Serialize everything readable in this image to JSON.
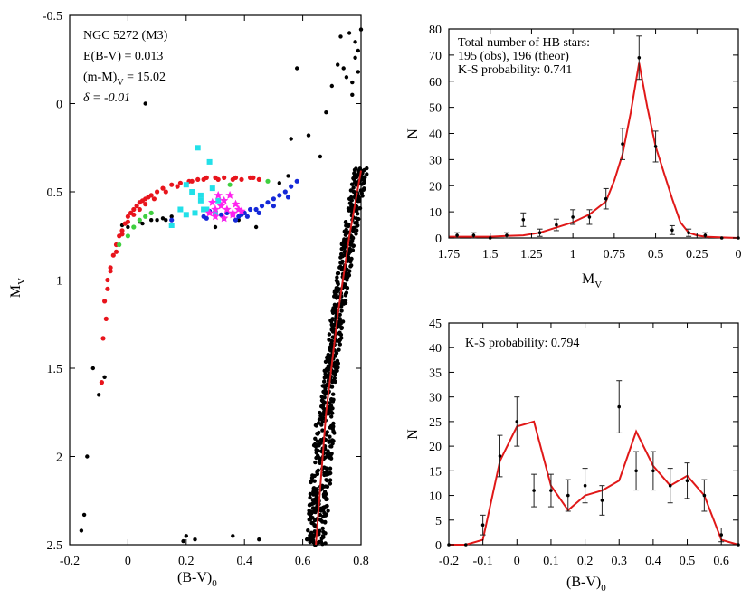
{
  "chart_data": [
    {
      "id": "cmd",
      "type": "scatter",
      "title": "",
      "xlabel_main": "(B-V)",
      "xlabel_sub": "0",
      "ylabel_main": "M",
      "ylabel_sub": "V",
      "xlim": [
        -0.2,
        0.8
      ],
      "ylim": [
        2.5,
        -0.5
      ],
      "xticks": [
        -0.2,
        0,
        0.2,
        0.4,
        0.6,
        0.8
      ],
      "xtick_labels": [
        "-0.2",
        "0",
        "0.2",
        "0.4",
        "0.6",
        "0.8"
      ],
      "yticks": [
        -0.5,
        0,
        0.5,
        1,
        1.5,
        2,
        2.5
      ],
      "ytick_labels": [
        "-0.5",
        "0",
        "0.5",
        "1",
        "1.5",
        "2",
        "2.5"
      ],
      "annotations": {
        "cluster": "NGC 5272 (M3)",
        "ebv": "E(B-V)  = 0.013",
        "dm_main": "(m-M)",
        "dm_sub": "V",
        "dm_value": " = 15.02",
        "delta": "δ = -0.01"
      },
      "colors": {
        "red": "#e8141c",
        "green": "#3fcf3f",
        "blue": "#1428d8",
        "magenta": "#ff22ee",
        "cyan": "#22e0e8",
        "black": "#000000",
        "line": "#d81a1a"
      },
      "rgb_ridge": {
        "x": [
          0.645,
          0.68,
          0.72,
          0.76,
          0.8
        ],
        "y": [
          2.5,
          1.75,
          1.2,
          0.75,
          0.38
        ]
      },
      "hb_red": {
        "x": [
          -0.08,
          -0.07,
          -0.06,
          -0.05,
          -0.04,
          -0.03,
          -0.02,
          -0.01,
          0.0,
          0.01,
          0.02,
          0.03,
          0.04,
          0.05,
          0.06,
          0.07,
          0.08,
          0.1,
          0.12,
          0.15,
          0.18,
          0.21,
          0.24,
          0.27,
          0.3,
          0.33,
          0.36,
          0.39,
          0.42,
          0.45,
          -0.07,
          -0.06,
          -0.04,
          -0.02,
          0.0,
          0.02,
          0.04,
          0.06,
          0.09,
          0.13,
          0.17,
          0.22,
          0.26,
          0.31,
          0.37,
          0.43,
          -0.09,
          -0.085,
          -0.075
        ],
        "y": [
          1.12,
          1.0,
          0.93,
          0.86,
          0.8,
          0.75,
          0.72,
          0.68,
          0.64,
          0.62,
          0.6,
          0.58,
          0.56,
          0.55,
          0.54,
          0.53,
          0.52,
          0.5,
          0.48,
          0.46,
          0.45,
          0.44,
          0.43,
          0.42,
          0.42,
          0.42,
          0.43,
          0.43,
          0.42,
          0.43,
          1.05,
          0.95,
          0.84,
          0.74,
          0.67,
          0.63,
          0.6,
          0.57,
          0.54,
          0.5,
          0.47,
          0.44,
          0.43,
          0.43,
          0.42,
          0.42,
          1.58,
          1.33,
          1.22
        ]
      },
      "hb_green": {
        "x": [
          -0.03,
          0.0,
          0.02,
          0.04,
          0.06,
          0.08,
          0.22,
          0.35,
          0.48
        ],
        "y": [
          0.8,
          0.75,
          0.7,
          0.66,
          0.64,
          0.62,
          0.5,
          0.46,
          0.44
        ]
      },
      "hb_blue": {
        "x": [
          0.2,
          0.23,
          0.26,
          0.28,
          0.3,
          0.32,
          0.34,
          0.36,
          0.38,
          0.4,
          0.42,
          0.44,
          0.46,
          0.48,
          0.5,
          0.52,
          0.54,
          0.56,
          0.58,
          0.33,
          0.37,
          0.41,
          0.45,
          0.5,
          0.55,
          0.15,
          0.27,
          0.39
        ],
        "y": [
          0.63,
          0.62,
          0.64,
          0.61,
          0.62,
          0.63,
          0.62,
          0.63,
          0.64,
          0.62,
          0.6,
          0.6,
          0.58,
          0.56,
          0.54,
          0.52,
          0.5,
          0.47,
          0.44,
          0.65,
          0.66,
          0.64,
          0.62,
          0.58,
          0.53,
          0.66,
          0.65,
          0.63
        ]
      },
      "hb_magenta": {
        "x": [
          0.28,
          0.3,
          0.32,
          0.34,
          0.36,
          0.38,
          0.3,
          0.33,
          0.36,
          0.31,
          0.35,
          0.29,
          0.33,
          0.37,
          0.39
        ],
        "y": [
          0.62,
          0.6,
          0.58,
          0.6,
          0.62,
          0.6,
          0.64,
          0.65,
          0.63,
          0.52,
          0.52,
          0.56,
          0.55,
          0.57,
          0.61
        ]
      },
      "hb_cyan": {
        "x": [
          0.24,
          0.28,
          0.2,
          0.22,
          0.25,
          0.29,
          0.31,
          0.27,
          0.23,
          0.18,
          0.2,
          0.26,
          0.15,
          0.3,
          0.25
        ],
        "y": [
          0.25,
          0.33,
          0.46,
          0.5,
          0.55,
          0.48,
          0.55,
          0.6,
          0.62,
          0.6,
          0.63,
          0.6,
          0.69,
          0.62,
          0.52
        ]
      },
      "misc_black": {
        "x": [
          -0.14,
          -0.15,
          -0.16,
          -0.12,
          -0.1,
          -0.08,
          0.06,
          0.13,
          0.19,
          0.2,
          0.23,
          0.36,
          0.45,
          0.3,
          0.44,
          0.38,
          0.52,
          0.55,
          0.15,
          0.1,
          0.05,
          0.0,
          -0.02,
          0.04,
          0.08,
          0.12
        ],
        "y": [
          2.0,
          2.33,
          2.42,
          1.5,
          1.65,
          1.55,
          0.0,
          0.66,
          2.48,
          2.45,
          2.47,
          2.45,
          2.47,
          0.7,
          0.7,
          0.66,
          0.45,
          0.41,
          0.64,
          0.66,
          0.68,
          0.7,
          0.69,
          0.67,
          0.66,
          0.65
        ]
      },
      "agb_black": {
        "x": [
          0.56,
          0.62,
          0.58,
          0.66,
          0.74,
          0.78,
          0.76,
          0.73,
          0.7,
          0.77,
          0.79,
          0.75,
          0.72,
          0.78,
          0.8,
          0.79,
          0.77,
          0.68
        ],
        "y": [
          0.2,
          0.18,
          -0.2,
          0.3,
          -0.2,
          -0.26,
          -0.4,
          -0.38,
          -0.1,
          -0.12,
          -0.3,
          -0.15,
          -0.22,
          -0.35,
          -0.42,
          -0.18,
          -0.05,
          0.05
        ]
      }
    },
    {
      "id": "mv_hist",
      "type": "line",
      "title": "",
      "xlabel_main": "M",
      "xlabel_sub": "V",
      "ylabel": "N",
      "xlim": [
        1.75,
        0
      ],
      "ylim": [
        0,
        80
      ],
      "xticks": [
        1.75,
        1.5,
        1.25,
        1,
        0.75,
        0.5,
        0.25,
        0
      ],
      "xtick_labels": [
        "1.75",
        "1.5",
        "1.25",
        "1",
        "0.75",
        "0.5",
        "0.25",
        "0"
      ],
      "yticks": [
        0,
        10,
        20,
        30,
        40,
        50,
        60,
        70,
        80
      ],
      "ytick_labels": [
        "0",
        "10",
        "20",
        "30",
        "40",
        "50",
        "60",
        "70",
        "80"
      ],
      "annotation_lines": [
        "Total number of HB stars:",
        "195 (obs), 196 (theor)",
        "K-S probability: 0.741"
      ],
      "observed": {
        "x": [
          1.7,
          1.6,
          1.5,
          1.4,
          1.3,
          1.2,
          1.1,
          1.0,
          0.9,
          0.8,
          0.7,
          0.6,
          0.5,
          0.4,
          0.3,
          0.2,
          0.1,
          0.0
        ],
        "y": [
          1,
          1,
          0,
          1,
          7,
          2,
          5,
          8,
          8,
          15,
          36,
          69,
          35,
          3,
          2,
          1,
          0,
          0
        ],
        "err": [
          1,
          1,
          0,
          1,
          2.6,
          1.4,
          2.2,
          2.8,
          2.8,
          3.9,
          6,
          8.3,
          5.9,
          1.7,
          1.4,
          1,
          0,
          0
        ]
      },
      "theory": {
        "x": [
          1.75,
          1.6,
          1.5,
          1.4,
          1.3,
          1.2,
          1.1,
          1.0,
          0.9,
          0.8,
          0.75,
          0.7,
          0.65,
          0.6,
          0.55,
          0.5,
          0.45,
          0.4,
          0.35,
          0.3,
          0.25,
          0.2,
          0.1,
          0.0
        ],
        "y": [
          0.5,
          0.5,
          0.5,
          0.8,
          1,
          2,
          4,
          6,
          9,
          14,
          22,
          32,
          48,
          67,
          50,
          35,
          25,
          15,
          6,
          2,
          1,
          0.5,
          0.2,
          0
        ]
      }
    },
    {
      "id": "bv_hist",
      "type": "line",
      "title": "",
      "xlabel_main": "(B-V)",
      "xlabel_sub": "0",
      "ylabel": "N",
      "xlim": [
        -0.2,
        0.65
      ],
      "ylim": [
        0,
        45
      ],
      "xticks": [
        -0.2,
        -0.1,
        0,
        0.1,
        0.2,
        0.3,
        0.4,
        0.5,
        0.6
      ],
      "xtick_labels": [
        "-0.2",
        "-0.1",
        "0",
        "0.1",
        "0.2",
        "0.3",
        "0.4",
        "0.5",
        "0.6"
      ],
      "yticks": [
        0,
        5,
        10,
        15,
        20,
        25,
        30,
        35,
        40,
        45
      ],
      "ytick_labels": [
        "0",
        "5",
        "10",
        "15",
        "20",
        "25",
        "30",
        "35",
        "40",
        "45"
      ],
      "annotation_lines": [
        "K-S probability: 0.794"
      ],
      "observed": {
        "x": [
          -0.2,
          -0.15,
          -0.1,
          -0.05,
          0.0,
          0.05,
          0.1,
          0.15,
          0.2,
          0.25,
          0.3,
          0.35,
          0.4,
          0.45,
          0.5,
          0.55,
          0.6,
          0.65
        ],
        "y": [
          0,
          0,
          4,
          18,
          25,
          11,
          11,
          10,
          12,
          9,
          28,
          15,
          15,
          12,
          13,
          10,
          2,
          0
        ],
        "err": [
          0,
          0,
          2,
          4.2,
          5,
          3.3,
          3.3,
          3.2,
          3.5,
          3,
          5.3,
          3.9,
          3.9,
          3.5,
          3.6,
          3.2,
          1.4,
          0
        ]
      },
      "theory": {
        "x": [
          -0.2,
          -0.15,
          -0.1,
          -0.05,
          0.0,
          0.05,
          0.1,
          0.15,
          0.2,
          0.25,
          0.3,
          0.35,
          0.4,
          0.45,
          0.5,
          0.55,
          0.6,
          0.65
        ],
        "y": [
          0,
          0,
          1,
          17,
          24,
          25,
          12,
          7,
          10,
          11,
          13,
          23,
          16,
          12,
          14,
          10,
          1,
          0
        ]
      }
    }
  ]
}
